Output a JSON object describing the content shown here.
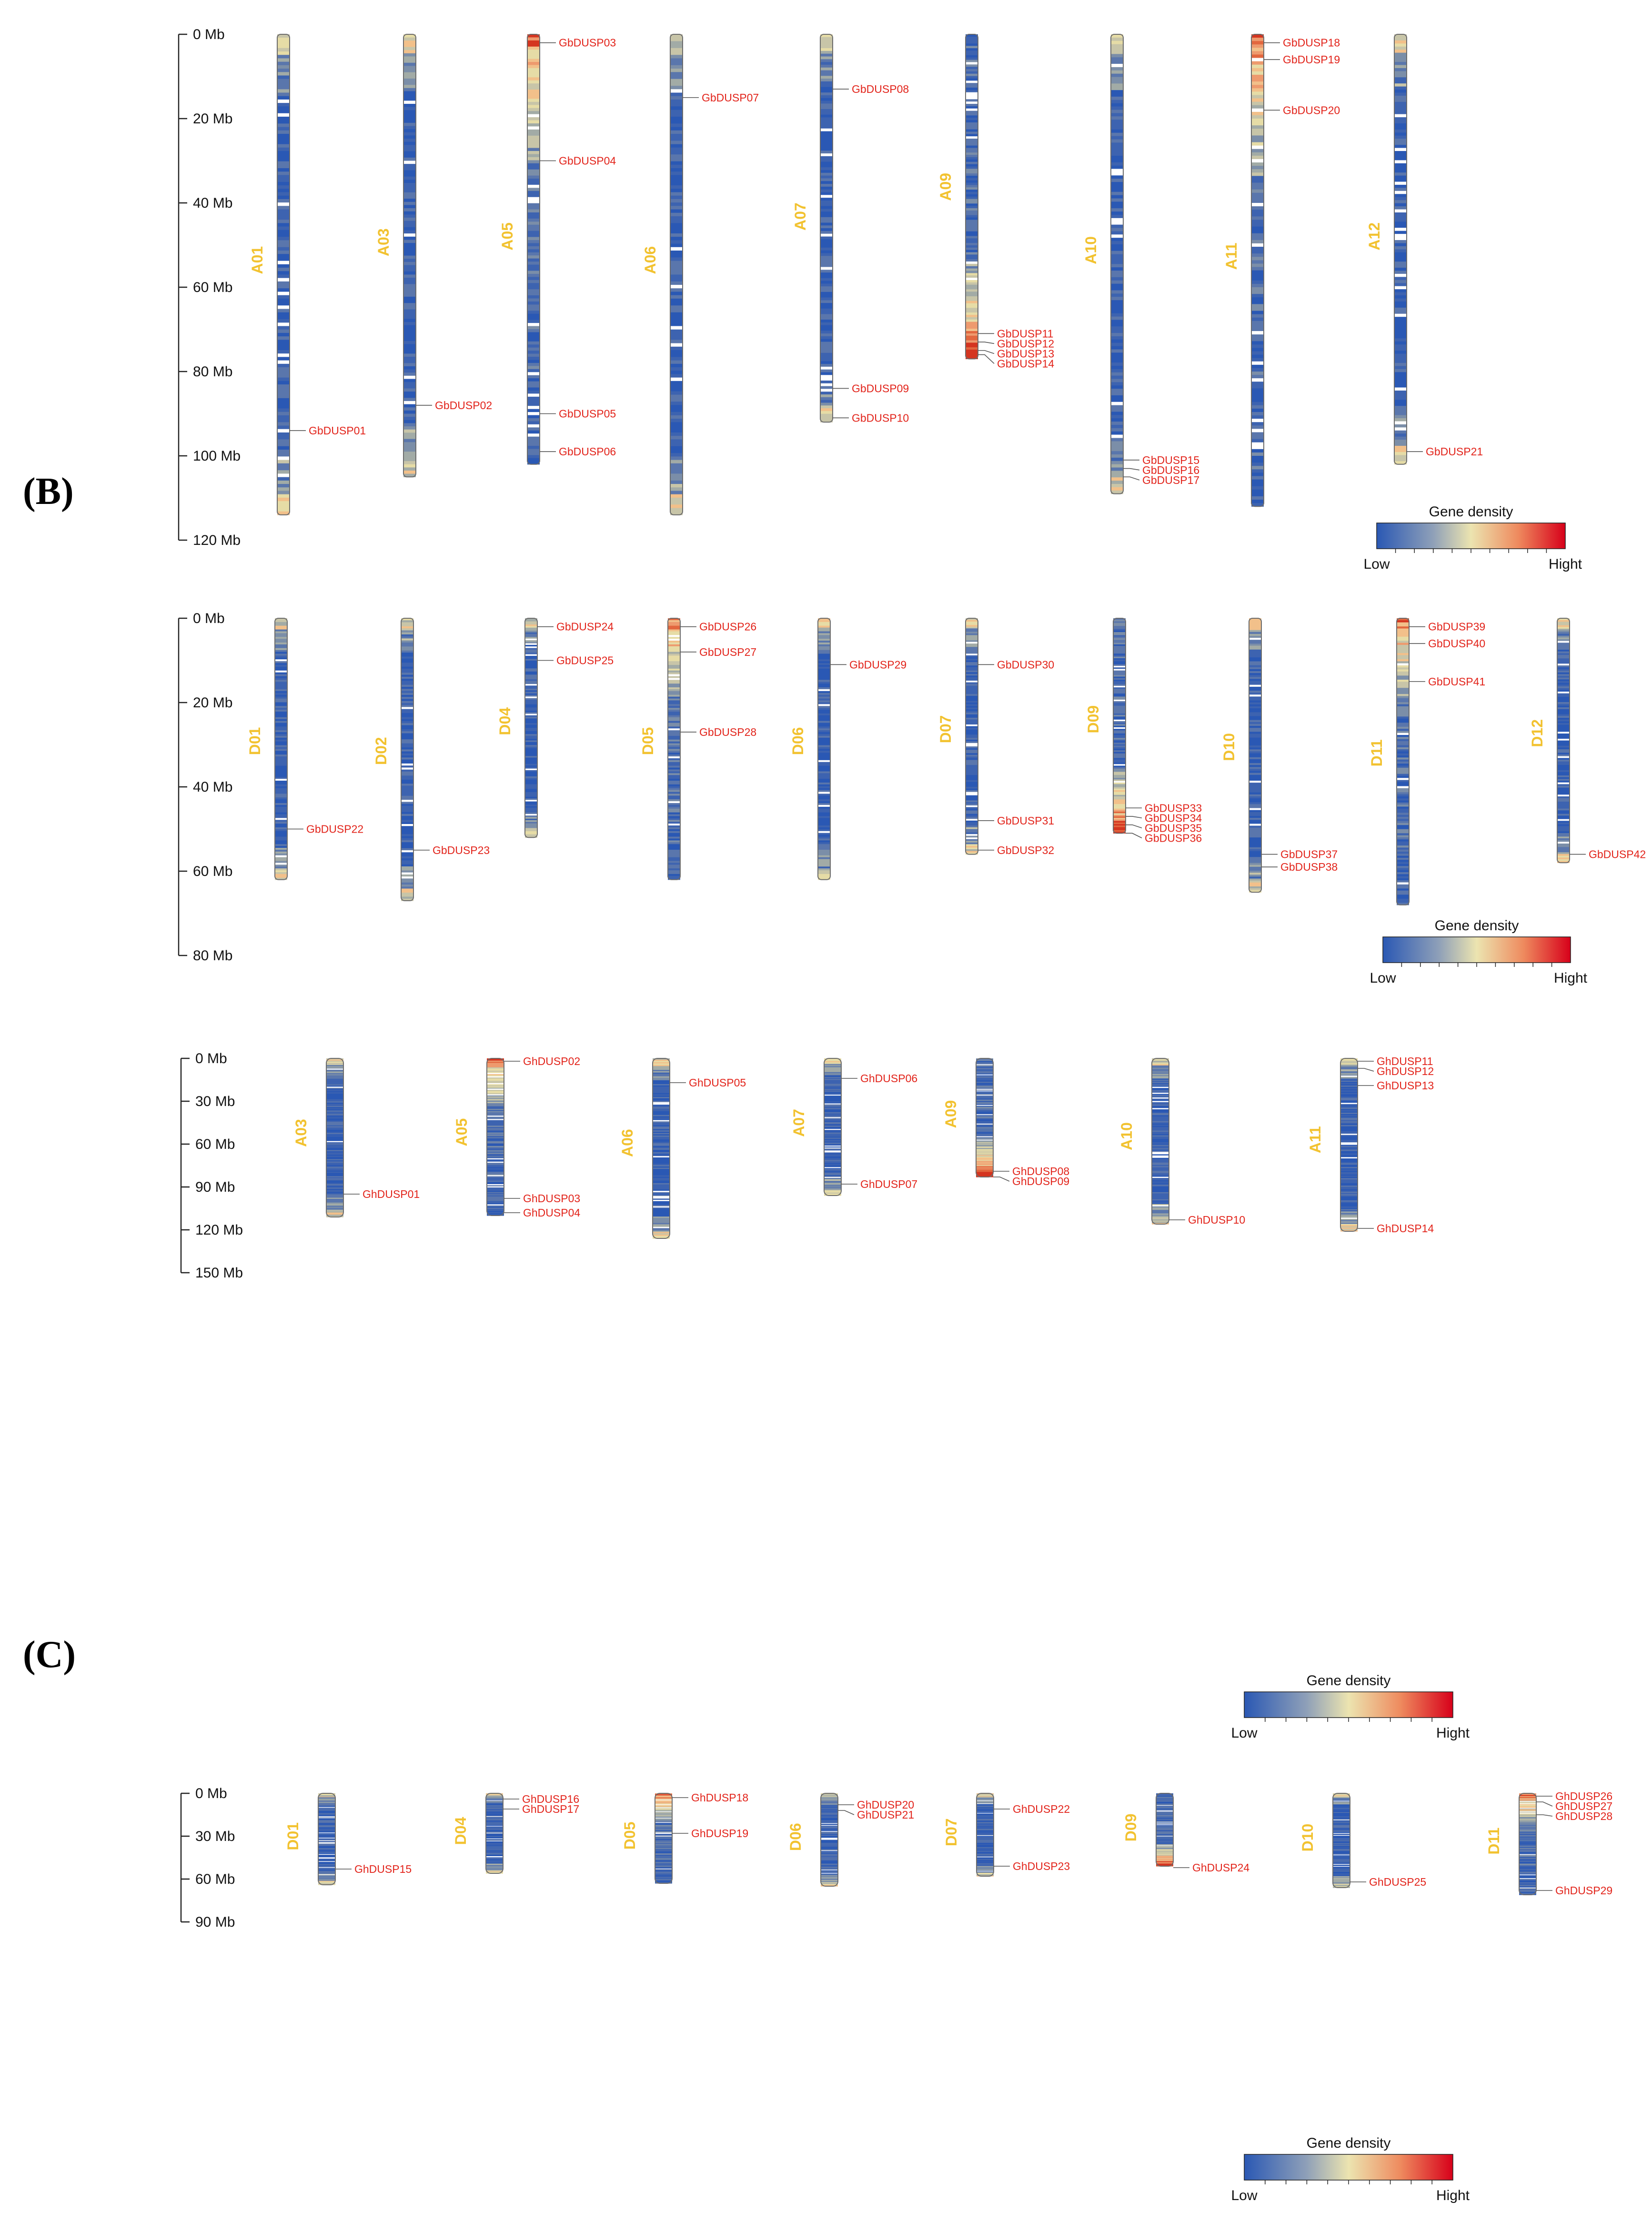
{
  "figure_labels": {
    "panel_b": "(B)",
    "panel_c": "(C)"
  },
  "legend": {
    "title": "Gene density",
    "low": "Low",
    "high": "Hight"
  },
  "panels": [
    {
      "id": "b-top",
      "scale_max": 120,
      "ticks": [
        0,
        20,
        40,
        60,
        80,
        100,
        120
      ],
      "tick_unit": "Mb",
      "chromosomes": [
        {
          "name": "A01",
          "length": 114,
          "profile": "blue",
          "genes": [
            {
              "id": "GbDUSP01",
              "pos": 94
            }
          ]
        },
        {
          "name": "A03",
          "length": 105,
          "profile": "blue",
          "genes": [
            {
              "id": "GbDUSP02",
              "pos": 88
            }
          ]
        },
        {
          "name": "A05",
          "length": 102,
          "profile": "warm-top",
          "genes": [
            {
              "id": "GbDUSP03",
              "pos": 2
            },
            {
              "id": "GbDUSP04",
              "pos": 30
            },
            {
              "id": "GbDUSP05",
              "pos": 90
            },
            {
              "id": "GbDUSP06",
              "pos": 99
            }
          ]
        },
        {
          "name": "A06",
          "length": 114,
          "profile": "blue",
          "genes": [
            {
              "id": "GbDUSP07",
              "pos": 15
            }
          ]
        },
        {
          "name": "A07",
          "length": 92,
          "profile": "blue",
          "genes": [
            {
              "id": "GbDUSP08",
              "pos": 13
            },
            {
              "id": "GbDUSP09",
              "pos": 84
            },
            {
              "id": "GbDUSP10",
              "pos": 91
            }
          ]
        },
        {
          "name": "A09",
          "length": 77,
          "profile": "warm-bottom",
          "genes": [
            {
              "id": "GbDUSP11",
              "pos": 71
            },
            {
              "id": "GbDUSP12",
              "pos": 73
            },
            {
              "id": "GbDUSP13",
              "pos": 75
            },
            {
              "id": "GbDUSP14",
              "pos": 76
            }
          ]
        },
        {
          "name": "A10",
          "length": 109,
          "profile": "blue",
          "genes": [
            {
              "id": "GbDUSP15",
              "pos": 101
            },
            {
              "id": "GbDUSP16",
              "pos": 103
            },
            {
              "id": "GbDUSP17",
              "pos": 105
            }
          ]
        },
        {
          "name": "A11",
          "length": 112,
          "profile": "warm-top",
          "genes": [
            {
              "id": "GbDUSP18",
              "pos": 2
            },
            {
              "id": "GbDUSP19",
              "pos": 6
            },
            {
              "id": "GbDUSP20",
              "pos": 18
            }
          ]
        },
        {
          "name": "A12",
          "length": 102,
          "profile": "blue",
          "genes": [
            {
              "id": "GbDUSP21",
              "pos": 99
            }
          ]
        }
      ]
    },
    {
      "id": "b-bottom",
      "scale_max": 80,
      "ticks": [
        0,
        20,
        40,
        60,
        80
      ],
      "tick_unit": "Mb",
      "chromosomes": [
        {
          "name": "D01",
          "length": 62,
          "profile": "blue",
          "genes": [
            {
              "id": "GbDUSP22",
              "pos": 50
            }
          ]
        },
        {
          "name": "D02",
          "length": 67,
          "profile": "blue",
          "genes": [
            {
              "id": "GbDUSP23",
              "pos": 55
            }
          ]
        },
        {
          "name": "D04",
          "length": 52,
          "profile": "blue",
          "genes": [
            {
              "id": "GbDUSP24",
              "pos": 2
            },
            {
              "id": "GbDUSP25",
              "pos": 10
            }
          ]
        },
        {
          "name": "D05",
          "length": 62,
          "profile": "warm-top",
          "genes": [
            {
              "id": "GbDUSP26",
              "pos": 2
            },
            {
              "id": "GbDUSP27",
              "pos": 8
            },
            {
              "id": "GbDUSP28",
              "pos": 27
            }
          ]
        },
        {
          "name": "D06",
          "length": 62,
          "profile": "blue",
          "genes": [
            {
              "id": "GbDUSP29",
              "pos": 11
            }
          ]
        },
        {
          "name": "D07",
          "length": 56,
          "profile": "blue",
          "genes": [
            {
              "id": "GbDUSP30",
              "pos": 11
            },
            {
              "id": "GbDUSP31",
              "pos": 48
            },
            {
              "id": "GbDUSP32",
              "pos": 55
            }
          ]
        },
        {
          "name": "D09",
          "length": 51,
          "profile": "warm-bottom",
          "genes": [
            {
              "id": "GbDUSP33",
              "pos": 45
            },
            {
              "id": "GbDUSP34",
              "pos": 47
            },
            {
              "id": "GbDUSP35",
              "pos": 49
            },
            {
              "id": "GbDUSP36",
              "pos": 51
            }
          ]
        },
        {
          "name": "D10",
          "length": 65,
          "profile": "blue",
          "genes": [
            {
              "id": "GbDUSP37",
              "pos": 56
            },
            {
              "id": "GbDUSP38",
              "pos": 59
            }
          ]
        },
        {
          "name": "D11",
          "length": 68,
          "profile": "warm-top",
          "genes": [
            {
              "id": "GbDUSP39",
              "pos": 2
            },
            {
              "id": "GbDUSP40",
              "pos": 6
            },
            {
              "id": "GbDUSP41",
              "pos": 15
            }
          ]
        },
        {
          "name": "D12",
          "length": 58,
          "profile": "blue",
          "genes": [
            {
              "id": "GbDUSP42",
              "pos": 56
            }
          ]
        }
      ]
    },
    {
      "id": "c-top",
      "scale_max": 150,
      "ticks": [
        0,
        30,
        60,
        90,
        120,
        150
      ],
      "tick_unit": "Mb",
      "chromosomes": [
        {
          "name": "A03",
          "length": 111,
          "profile": "blue",
          "genes": [
            {
              "id": "GhDUSP01",
              "pos": 95
            }
          ]
        },
        {
          "name": "A05",
          "length": 110,
          "profile": "warm-top",
          "genes": [
            {
              "id": "GhDUSP02",
              "pos": 2
            },
            {
              "id": "GhDUSP03",
              "pos": 98
            },
            {
              "id": "GhDUSP04",
              "pos": 108
            }
          ]
        },
        {
          "name": "A06",
          "length": 126,
          "profile": "blue",
          "genes": [
            {
              "id": "GhDUSP05",
              "pos": 17
            }
          ]
        },
        {
          "name": "A07",
          "length": 96,
          "profile": "blue",
          "genes": [
            {
              "id": "GhDUSP06",
              "pos": 14
            },
            {
              "id": "GhDUSP07",
              "pos": 88
            }
          ]
        },
        {
          "name": "A09",
          "length": 83,
          "profile": "warm-bottom",
          "genes": [
            {
              "id": "GhDUSP08",
              "pos": 79
            },
            {
              "id": "GhDUSP09",
              "pos": 83
            }
          ]
        },
        {
          "name": "A10",
          "length": 116,
          "profile": "blue",
          "genes": [
            {
              "id": "GhDUSP10",
              "pos": 113
            }
          ]
        },
        {
          "name": "A11",
          "length": 121,
          "profile": "blue",
          "genes": [
            {
              "id": "GhDUSP11",
              "pos": 2
            },
            {
              "id": "GhDUSP12",
              "pos": 7
            },
            {
              "id": "GhDUSP13",
              "pos": 19
            },
            {
              "id": "GhDUSP14",
              "pos": 119
            }
          ]
        }
      ]
    },
    {
      "id": "c-bottom",
      "scale_max": 90,
      "ticks": [
        0,
        30,
        60,
        90
      ],
      "tick_unit": "Mb",
      "chromosomes": [
        {
          "name": "D01",
          "length": 64,
          "profile": "blue",
          "genes": [
            {
              "id": "GhDUSP15",
              "pos": 53
            }
          ]
        },
        {
          "name": "D04",
          "length": 56,
          "profile": "blue",
          "genes": [
            {
              "id": "GhDUSP16",
              "pos": 4
            },
            {
              "id": "GhDUSP17",
              "pos": 11
            }
          ]
        },
        {
          "name": "D05",
          "length": 63,
          "profile": "warm-top",
          "genes": [
            {
              "id": "GhDUSP18",
              "pos": 3
            },
            {
              "id": "GhDUSP19",
              "pos": 28
            }
          ]
        },
        {
          "name": "D06",
          "length": 65,
          "profile": "blue",
          "genes": [
            {
              "id": "GhDUSP20",
              "pos": 8
            },
            {
              "id": "GhDUSP21",
              "pos": 12
            }
          ]
        },
        {
          "name": "D07",
          "length": 58,
          "profile": "blue",
          "genes": [
            {
              "id": "GhDUSP22",
              "pos": 11
            },
            {
              "id": "GhDUSP23",
              "pos": 51
            }
          ]
        },
        {
          "name": "D09",
          "length": 51,
          "profile": "warm-bottom",
          "genes": [
            {
              "id": "GhDUSP24",
              "pos": 52
            }
          ]
        },
        {
          "name": "D10",
          "length": 66,
          "profile": "blue",
          "genes": [
            {
              "id": "GhDUSP25",
              "pos": 62
            }
          ]
        },
        {
          "name": "D11",
          "length": 71,
          "profile": "warm-top",
          "genes": [
            {
              "id": "GhDUSP26",
              "pos": 2
            },
            {
              "id": "GhDUSP27",
              "pos": 6
            },
            {
              "id": "GhDUSP28",
              "pos": 15
            },
            {
              "id": "GhDUSP29",
              "pos": 68
            }
          ]
        }
      ]
    }
  ]
}
